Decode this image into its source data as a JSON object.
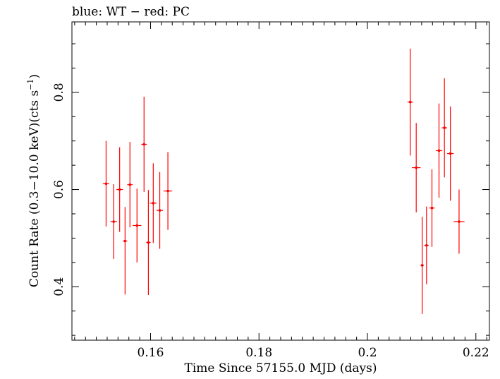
{
  "chart_data": {
    "type": "scatter",
    "title": "blue: WT − red: PC",
    "xlabel": "Time Since 57155.0 MJD (days)",
    "ylabel_main": "Count Rate (0.3−10.0 keV)(cts s",
    "ylabel_sup": "−1",
    "ylabel_end": ")",
    "xlim": [
      0.1455,
      0.2225
    ],
    "ylim": [
      0.29,
      0.945
    ],
    "x_ticks": [
      0.16,
      0.18,
      0.2,
      0.22
    ],
    "x_tick_labels": [
      "0.16",
      "0.18",
      "0.2",
      "0.22"
    ],
    "y_ticks": [
      0.4,
      0.6,
      0.8
    ],
    "y_tick_labels": [
      "0.4",
      "0.6",
      "0.8"
    ],
    "grid": false,
    "series": [
      {
        "color": "#ff0000",
        "points": [
          {
            "x": 0.1518,
            "xerr": 0.0006,
            "y": 0.612,
            "yerr_lo": 0.088,
            "yerr_hi": 0.088
          },
          {
            "x": 0.1532,
            "xerr": 0.0006,
            "y": 0.534,
            "yerr_lo": 0.077,
            "yerr_hi": 0.077
          },
          {
            "x": 0.1543,
            "xerr": 0.0006,
            "y": 0.6,
            "yerr_lo": 0.087,
            "yerr_hi": 0.087
          },
          {
            "x": 0.1553,
            "xerr": 0.0004,
            "y": 0.494,
            "yerr_lo": 0.11,
            "yerr_hi": 0.07
          },
          {
            "x": 0.1562,
            "xerr": 0.0005,
            "y": 0.61,
            "yerr_lo": 0.088,
            "yerr_hi": 0.088
          },
          {
            "x": 0.1575,
            "xerr": 0.0008,
            "y": 0.526,
            "yerr_lo": 0.076,
            "yerr_hi": 0.076
          },
          {
            "x": 0.1588,
            "xerr": 0.0005,
            "y": 0.693,
            "yerr_lo": 0.098,
            "yerr_hi": 0.098
          },
          {
            "x": 0.1596,
            "xerr": 0.0004,
            "y": 0.491,
            "yerr_lo": 0.108,
            "yerr_hi": 0.108
          },
          {
            "x": 0.1605,
            "xerr": 0.0006,
            "y": 0.572,
            "yerr_lo": 0.082,
            "yerr_hi": 0.082
          },
          {
            "x": 0.1617,
            "xerr": 0.0006,
            "y": 0.557,
            "yerr_lo": 0.079,
            "yerr_hi": 0.079
          },
          {
            "x": 0.1632,
            "xerr": 0.0008,
            "y": 0.597,
            "yerr_lo": 0.08,
            "yerr_hi": 0.08
          },
          {
            "x": 0.2079,
            "xerr": 0.0005,
            "y": 0.78,
            "yerr_lo": 0.11,
            "yerr_hi": 0.11
          },
          {
            "x": 0.209,
            "xerr": 0.0008,
            "y": 0.645,
            "yerr_lo": 0.092,
            "yerr_hi": 0.092
          },
          {
            "x": 0.2101,
            "xerr": 0.0003,
            "y": 0.444,
            "yerr_lo": 0.1,
            "yerr_hi": 0.1
          },
          {
            "x": 0.2109,
            "xerr": 0.0004,
            "y": 0.485,
            "yerr_lo": 0.08,
            "yerr_hi": 0.08
          },
          {
            "x": 0.2119,
            "xerr": 0.0005,
            "y": 0.562,
            "yerr_lo": 0.08,
            "yerr_hi": 0.08
          },
          {
            "x": 0.2132,
            "xerr": 0.0006,
            "y": 0.68,
            "yerr_lo": 0.097,
            "yerr_hi": 0.097
          },
          {
            "x": 0.2142,
            "xerr": 0.0005,
            "y": 0.727,
            "yerr_lo": 0.102,
            "yerr_hi": 0.102
          },
          {
            "x": 0.2153,
            "xerr": 0.0006,
            "y": 0.674,
            "yerr_lo": 0.097,
            "yerr_hi": 0.097
          },
          {
            "x": 0.2169,
            "xerr": 0.001,
            "y": 0.534,
            "yerr_lo": 0.066,
            "yerr_hi": 0.066
          }
        ]
      }
    ]
  }
}
